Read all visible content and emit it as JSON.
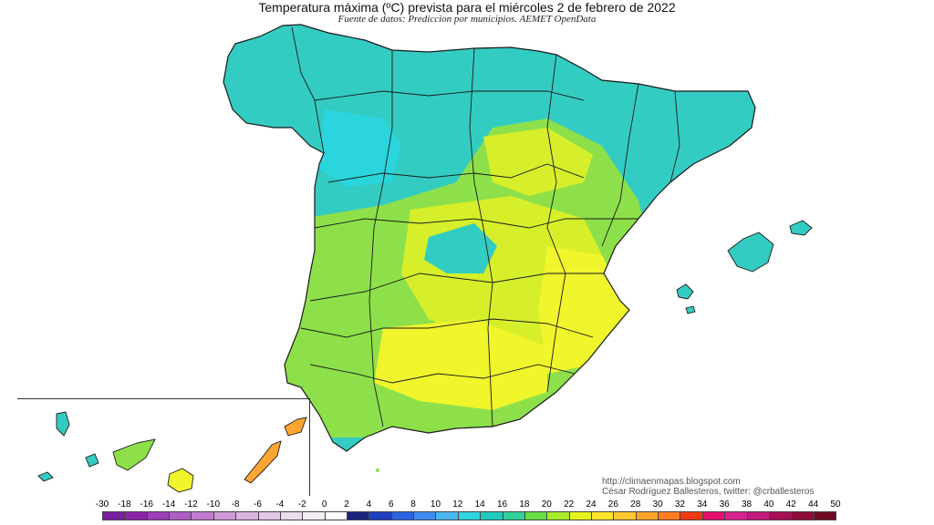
{
  "header": {
    "title": "Temperatura máxima (ºC) prevista para el miércoles 2 de febrero de 2022",
    "subtitle": "Fuente de datos: Prediccion por municipios. AEMET OpenData"
  },
  "credits": {
    "website": "http://climaenmapas.blogspot.com",
    "author": "César Rodríguez Ballesteros, twitter: @crballesteros"
  },
  "legend": {
    "labels": [
      "-30",
      "-18",
      "-16",
      "-14",
      "-12",
      "-10",
      "-8",
      "-6",
      "-4",
      "-2",
      "0",
      "2",
      "4",
      "6",
      "8",
      "10",
      "12",
      "14",
      "16",
      "18",
      "20",
      "22",
      "24",
      "26",
      "28",
      "30",
      "32",
      "34",
      "36",
      "38",
      "40",
      "42",
      "44",
      "50"
    ],
    "colors": [
      "#7b1fa2",
      "#8e24aa",
      "#9c3fb8",
      "#b05cc5",
      "#c07bcf",
      "#cf9ad6",
      "#dbb3df",
      "#e3c7e6",
      "#ebdcee",
      "#f3eef6",
      "#ffffff",
      "#1a237e",
      "#1e3fbf",
      "#2b63e3",
      "#3f8df2",
      "#49b7f0",
      "#2fd5e0",
      "#1fc9c0",
      "#2fd09a",
      "#66dd44",
      "#a6ec2a",
      "#e6f520",
      "#ffe52a",
      "#ffc72e",
      "#ffa52a",
      "#ff7b1f",
      "#f23a12",
      "#e60e6a",
      "#d8228e",
      "#c21a7a",
      "#a80f55",
      "#8e0c3a",
      "#6e0a24"
    ]
  },
  "map": {
    "palette": {
      "cold": "#33ccc2",
      "cool": "#20c4cf",
      "coast": "#2ad5dd",
      "mild": "#8ee04a",
      "warm": "#d6ef2a",
      "hot": "#f0f52c",
      "orange": "#ffa632",
      "sea": "#ffffff",
      "border": "#1a1a1a"
    }
  }
}
